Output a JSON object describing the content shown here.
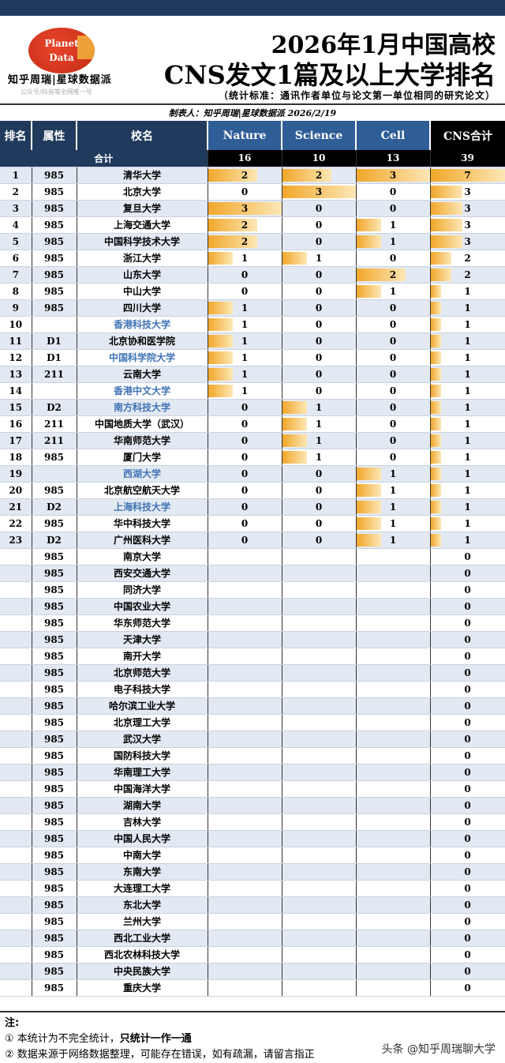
{
  "header": {
    "logo_line1": "Planet",
    "logo_line2": "Data",
    "brand": "知乎周瑞|星球数据派",
    "brand_sub": "公众号/抖音等全网唯一号",
    "title1": "2026年1月中国高校",
    "title2": "CNS发文1篇及以上大学排名",
    "criteria": "（统计标准：通讯作者单位与论文第一单位相同的研究论文）",
    "maker": "制表人：知乎周瑞|星球数据派 2026/2/19"
  },
  "columns": [
    "排名",
    "属性",
    "校名",
    "Nature",
    "Science",
    "Cell",
    "CNS合计"
  ],
  "totals": {
    "label": "合计",
    "values": [
      "16",
      "10",
      "13",
      "39"
    ]
  },
  "bar_max": [
    3,
    3,
    3,
    7
  ],
  "bar_color": "#f1a72a",
  "rows": [
    [
      "1",
      "985",
      "清华大学",
      "2",
      "2",
      "3",
      "7",
      0
    ],
    [
      "2",
      "985",
      "北京大学",
      "0",
      "3",
      "0",
      "3",
      0
    ],
    [
      "3",
      "985",
      "复旦大学",
      "3",
      "0",
      "0",
      "3",
      0
    ],
    [
      "4",
      "985",
      "上海交通大学",
      "2",
      "0",
      "1",
      "3",
      0
    ],
    [
      "5",
      "985",
      "中国科学技术大学",
      "2",
      "0",
      "1",
      "3",
      0
    ],
    [
      "6",
      "985",
      "浙江大学",
      "1",
      "1",
      "0",
      "2",
      0
    ],
    [
      "7",
      "985",
      "山东大学",
      "0",
      "0",
      "2",
      "2",
      0
    ],
    [
      "8",
      "985",
      "中山大学",
      "0",
      "0",
      "1",
      "1",
      0
    ],
    [
      "9",
      "985",
      "四川大学",
      "1",
      "0",
      "0",
      "1",
      0
    ],
    [
      "10",
      "",
      "香港科技大学",
      "1",
      "0",
      "0",
      "1",
      1
    ],
    [
      "11",
      "D1",
      "北京协和医学院",
      "1",
      "0",
      "0",
      "1",
      0
    ],
    [
      "12",
      "D1",
      "中国科学院大学",
      "1",
      "0",
      "0",
      "1",
      1
    ],
    [
      "13",
      "211",
      "云南大学",
      "1",
      "0",
      "0",
      "1",
      0
    ],
    [
      "14",
      "",
      "香港中文大学",
      "1",
      "0",
      "0",
      "1",
      1
    ],
    [
      "15",
      "D2",
      "南方科技大学",
      "0",
      "1",
      "0",
      "1",
      1
    ],
    [
      "16",
      "211",
      "中国地质大学（武汉）",
      "0",
      "1",
      "0",
      "1",
      0
    ],
    [
      "17",
      "211",
      "华南师范大学",
      "0",
      "1",
      "0",
      "1",
      0
    ],
    [
      "18",
      "985",
      "厦门大学",
      "0",
      "1",
      "0",
      "1",
      0
    ],
    [
      "19",
      "",
      "西湖大学",
      "0",
      "0",
      "1",
      "1",
      1
    ],
    [
      "20",
      "985",
      "北京航空航天大学",
      "0",
      "0",
      "1",
      "1",
      0
    ],
    [
      "21",
      "D2",
      "上海科技大学",
      "0",
      "0",
      "1",
      "1",
      1
    ],
    [
      "22",
      "985",
      "华中科技大学",
      "0",
      "0",
      "1",
      "1",
      0
    ],
    [
      "23",
      "D2",
      "广州医科大学",
      "0",
      "0",
      "1",
      "1",
      0
    ],
    [
      "",
      "985",
      "南京大学",
      "",
      "",
      "",
      "0",
      0
    ],
    [
      "",
      "985",
      "西安交通大学",
      "",
      "",
      "",
      "0",
      0
    ],
    [
      "",
      "985",
      "同济大学",
      "",
      "",
      "",
      "0",
      0
    ],
    [
      "",
      "985",
      "中国农业大学",
      "",
      "",
      "",
      "0",
      0
    ],
    [
      "",
      "985",
      "华东师范大学",
      "",
      "",
      "",
      "0",
      0
    ],
    [
      "",
      "985",
      "天津大学",
      "",
      "",
      "",
      "0",
      0
    ],
    [
      "",
      "985",
      "南开大学",
      "",
      "",
      "",
      "0",
      0
    ],
    [
      "",
      "985",
      "北京师范大学",
      "",
      "",
      "",
      "0",
      0
    ],
    [
      "",
      "985",
      "电子科技大学",
      "",
      "",
      "",
      "0",
      0
    ],
    [
      "",
      "985",
      "哈尔滨工业大学",
      "",
      "",
      "",
      "0",
      0
    ],
    [
      "",
      "985",
      "北京理工大学",
      "",
      "",
      "",
      "0",
      0
    ],
    [
      "",
      "985",
      "武汉大学",
      "",
      "",
      "",
      "0",
      0
    ],
    [
      "",
      "985",
      "国防科技大学",
      "",
      "",
      "",
      "0",
      0
    ],
    [
      "",
      "985",
      "华南理工大学",
      "",
      "",
      "",
      "0",
      0
    ],
    [
      "",
      "985",
      "中国海洋大学",
      "",
      "",
      "",
      "0",
      0
    ],
    [
      "",
      "985",
      "湖南大学",
      "",
      "",
      "",
      "0",
      0
    ],
    [
      "",
      "985",
      "吉林大学",
      "",
      "",
      "",
      "0",
      0
    ],
    [
      "",
      "985",
      "中国人民大学",
      "",
      "",
      "",
      "0",
      0
    ],
    [
      "",
      "985",
      "中南大学",
      "",
      "",
      "",
      "0",
      0
    ],
    [
      "",
      "985",
      "东南大学",
      "",
      "",
      "",
      "0",
      0
    ],
    [
      "",
      "985",
      "大连理工大学",
      "",
      "",
      "",
      "0",
      0
    ],
    [
      "",
      "985",
      "东北大学",
      "",
      "",
      "",
      "0",
      0
    ],
    [
      "",
      "985",
      "兰州大学",
      "",
      "",
      "",
      "0",
      0
    ],
    [
      "",
      "985",
      "西北工业大学",
      "",
      "",
      "",
      "0",
      0
    ],
    [
      "",
      "985",
      "西北农林科技大学",
      "",
      "",
      "",
      "0",
      0
    ],
    [
      "",
      "985",
      "中央民族大学",
      "",
      "",
      "",
      "0",
      0
    ],
    [
      "",
      "985",
      "重庆大学",
      "",
      "",
      "",
      "0",
      0
    ]
  ],
  "notes": {
    "title": "注:",
    "n1a": "① 本统计为不完全统计，",
    "n1b": "只统计一作一通",
    "n2": "② 数据来源于网络数据整理，可能存在错误，如有疏漏，请留言指正"
  },
  "watermark": "头条 @知乎周瑞聊大学"
}
